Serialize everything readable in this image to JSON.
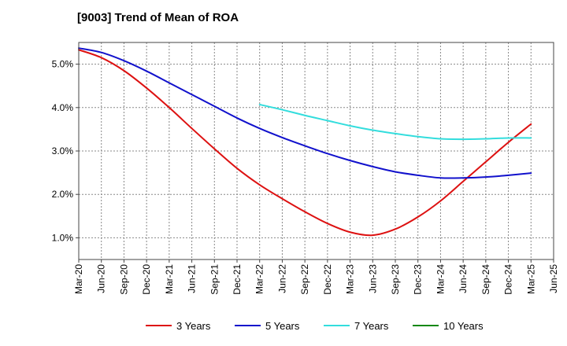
{
  "chart_data": {
    "type": "line",
    "title": "[9003]  Trend of Mean of ROA",
    "xlabel": "",
    "ylabel": "",
    "x": [
      "Mar-20",
      "Jun-20",
      "Sep-20",
      "Dec-20",
      "Mar-21",
      "Jun-21",
      "Sep-21",
      "Dec-21",
      "Mar-22",
      "Jun-22",
      "Sep-22",
      "Dec-22",
      "Mar-23",
      "Jun-23",
      "Sep-23",
      "Dec-23",
      "Mar-24",
      "Jun-24",
      "Sep-24",
      "Dec-24",
      "Mar-25",
      "Jun-25"
    ],
    "ylim": [
      0.5,
      5.5
    ],
    "yticks": [
      1.0,
      2.0,
      3.0,
      4.0,
      5.0
    ],
    "ytick_labels": [
      "1.0%",
      "2.0%",
      "3.0%",
      "4.0%",
      "5.0%"
    ],
    "grid": true,
    "legend_position": "bottom",
    "series": [
      {
        "name": "3 Years",
        "color": "#dd1111",
        "values": [
          5.33,
          5.15,
          4.85,
          4.45,
          4.0,
          3.52,
          3.05,
          2.6,
          2.22,
          1.9,
          1.6,
          1.33,
          1.13,
          1.06,
          1.2,
          1.48,
          1.85,
          2.3,
          2.75,
          3.2,
          3.62,
          null
        ]
      },
      {
        "name": "5 Years",
        "color": "#1111cc",
        "values": [
          5.37,
          5.27,
          5.08,
          4.84,
          4.57,
          4.3,
          4.03,
          3.76,
          3.52,
          3.31,
          3.12,
          2.94,
          2.78,
          2.64,
          2.52,
          2.44,
          2.38,
          2.38,
          2.4,
          2.44,
          2.49,
          null
        ]
      },
      {
        "name": "7 Years",
        "color": "#33dddd",
        "values": [
          null,
          null,
          null,
          null,
          null,
          null,
          null,
          null,
          4.07,
          3.95,
          3.82,
          3.7,
          3.58,
          3.48,
          3.4,
          3.33,
          3.28,
          3.27,
          3.28,
          3.3,
          3.3,
          null
        ]
      },
      {
        "name": "10 Years",
        "color": "#118811",
        "values": [
          null,
          null,
          null,
          null,
          null,
          null,
          null,
          null,
          null,
          null,
          null,
          null,
          null,
          null,
          null,
          null,
          null,
          null,
          null,
          null,
          null,
          null
        ]
      }
    ]
  }
}
